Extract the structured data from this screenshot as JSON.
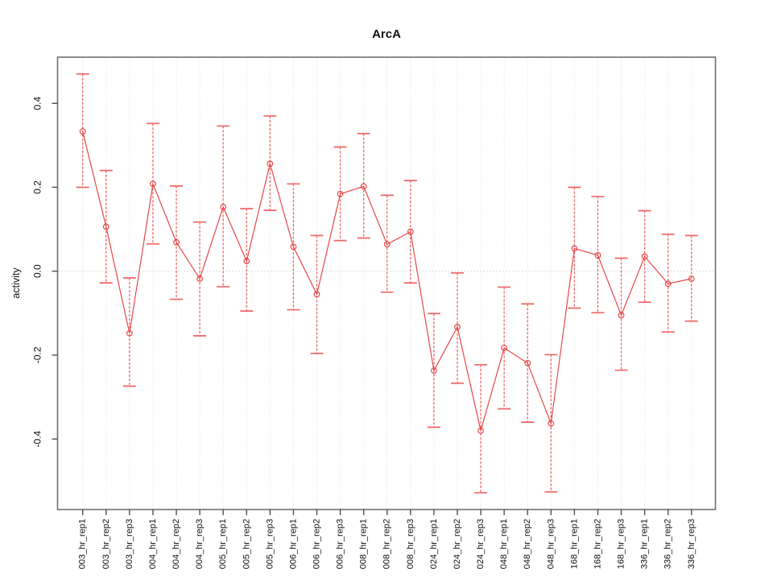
{
  "title": "ArcA",
  "axes": {
    "xlabel": "",
    "ylabel": "activity",
    "y_tick_labels": [
      "0.4",
      "0.2",
      "0.0",
      "-0.2",
      "-0.4"
    ],
    "y_tick_values": [
      0.4,
      0.2,
      0.0,
      -0.2,
      -0.4
    ]
  },
  "chart_data": {
    "type": "line",
    "title": "ArcA",
    "xlabel": "",
    "ylabel": "activity",
    "legend_position": "none",
    "marker": "open-circle",
    "error_bars": true,
    "grid": {
      "vertical": "dotted gridline at every category",
      "horizontal": "dotted line at y=0 only"
    },
    "ylim": [
      -0.568,
      0.51
    ],
    "y_ticks": [
      0.4,
      0.2,
      0.0,
      -0.2,
      -0.4
    ],
    "categories": [
      "003_hr_rep1",
      "003_hr_rep2",
      "003_hr_rep3",
      "004_hr_rep1",
      "004_hr_rep2",
      "004_hr_rep3",
      "005_hr_rep1",
      "005_hr_rep2",
      "005_hr_rep3",
      "006_hr_rep1",
      "006_hr_rep2",
      "006_hr_rep3",
      "008_hr_rep1",
      "008_hr_rep2",
      "008_hr_rep3",
      "024_hr_rep1",
      "024_hr_rep2",
      "024_hr_rep3",
      "048_hr_rep1",
      "048_hr_rep2",
      "048_hr_rep3",
      "168_hr_rep1",
      "168_hr_rep2",
      "168_hr_rep3",
      "336_hr_rep1",
      "336_hr_rep2",
      "336_hr_rep3"
    ],
    "series": [
      {
        "name": "activity",
        "values": [
          0.333,
          0.106,
          -0.148,
          0.208,
          0.069,
          -0.018,
          0.153,
          0.024,
          0.256,
          0.058,
          -0.055,
          0.184,
          0.202,
          0.064,
          0.094,
          -0.237,
          -0.133,
          -0.38,
          -0.183,
          -0.219,
          -0.363,
          0.054,
          0.038,
          -0.105,
          0.035,
          -0.03,
          -0.018
        ],
        "ci_high": [
          0.47,
          0.24,
          -0.016,
          0.352,
          0.203,
          0.117,
          0.346,
          0.149,
          0.37,
          0.208,
          0.085,
          0.296,
          0.328,
          0.181,
          0.216,
          -0.101,
          -0.004,
          -0.223,
          -0.038,
          -0.078,
          -0.199,
          0.2,
          0.178,
          0.031,
          0.144,
          0.088,
          0.085
        ],
        "ci_low": [
          0.2,
          -0.028,
          -0.274,
          0.065,
          -0.067,
          -0.154,
          -0.037,
          -0.095,
          0.145,
          -0.092,
          -0.196,
          0.073,
          0.079,
          -0.05,
          -0.028,
          -0.372,
          -0.267,
          -0.528,
          -0.328,
          -0.36,
          -0.526,
          -0.088,
          -0.099,
          -0.236,
          -0.074,
          -0.145,
          -0.119
        ]
      }
    ],
    "colors": {
      "series": "#e64848",
      "error_bar": "#ef6565",
      "grid": "#d9d9d9",
      "zero_line": "#d4d4d4",
      "box": "#6e6e6e",
      "tick": "#4d4d4d",
      "label": "#111111"
    }
  }
}
